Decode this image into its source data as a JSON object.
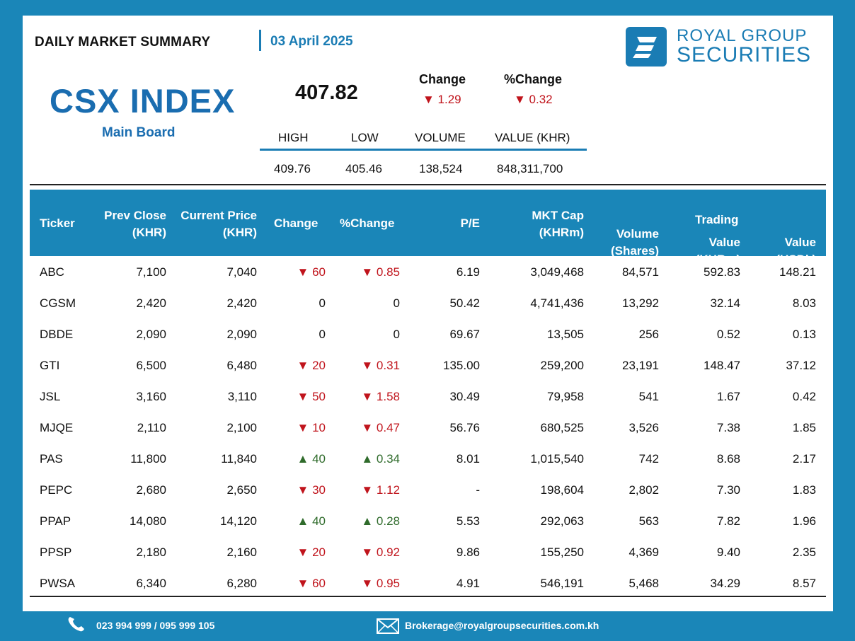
{
  "header": {
    "title": "DAILY MARKET SUMMARY",
    "date": "03 April 2025",
    "logo_line1": "ROYAL GROUP",
    "logo_line2": "SECURITIES"
  },
  "index": {
    "name": "CSX INDEX",
    "board": "Main Board",
    "value": "407.82",
    "change_label": "Change",
    "change_value": "▼ 1.29",
    "pct_change_label": "%Change",
    "pct_change_value": "▼ 0.32",
    "stats_headers": [
      "HIGH",
      "LOW",
      "VOLUME",
      "VALUE (KHR)"
    ],
    "stats_values": [
      "409.76",
      "405.46",
      "138,524",
      "848,311,700"
    ]
  },
  "table": {
    "headers": {
      "ticker": "Ticker",
      "prev_close_1": "Prev Close",
      "prev_close_2": "(KHR)",
      "current_price_1": "Current Price",
      "current_price_2": "(KHR)",
      "change": "Change",
      "pct_change": "%Change",
      "pe": "P/E",
      "mkt_cap_1": "MKT Cap",
      "mkt_cap_2": "(KHRm)",
      "volume_1": "Volume",
      "volume_2": "(Shares)",
      "trading": "Trading",
      "value_khrm_1": "Value",
      "value_khrm_2": "(KHRm)",
      "value_usdk_1": "Value",
      "value_usdk_2": "(USDk)"
    },
    "rows": [
      {
        "ticker": "ABC",
        "prev": "7,100",
        "curr": "7,040",
        "change": "▼ 60",
        "pct": "▼ 0.85",
        "dir": "down",
        "pe": "6.19",
        "mktcap": "3,049,468",
        "volume": "84,571",
        "value_khrm": "592.83",
        "value_usdk": "148.21"
      },
      {
        "ticker": "CGSM",
        "prev": "2,420",
        "curr": "2,420",
        "change": "0",
        "pct": "0",
        "dir": "neutral",
        "pe": "50.42",
        "mktcap": "4,741,436",
        "volume": "13,292",
        "value_khrm": "32.14",
        "value_usdk": "8.03"
      },
      {
        "ticker": "DBDE",
        "prev": "2,090",
        "curr": "2,090",
        "change": "0",
        "pct": "0",
        "dir": "neutral",
        "pe": "69.67",
        "mktcap": "13,505",
        "volume": "256",
        "value_khrm": "0.52",
        "value_usdk": "0.13"
      },
      {
        "ticker": "GTI",
        "prev": "6,500",
        "curr": "6,480",
        "change": "▼ 20",
        "pct": "▼ 0.31",
        "dir": "down",
        "pe": "135.00",
        "mktcap": "259,200",
        "volume": "23,191",
        "value_khrm": "148.47",
        "value_usdk": "37.12"
      },
      {
        "ticker": "JSL",
        "prev": "3,160",
        "curr": "3,110",
        "change": "▼ 50",
        "pct": "▼ 1.58",
        "dir": "down",
        "pe": "30.49",
        "mktcap": "79,958",
        "volume": "541",
        "value_khrm": "1.67",
        "value_usdk": "0.42"
      },
      {
        "ticker": "MJQE",
        "prev": "2,110",
        "curr": "2,100",
        "change": "▼ 10",
        "pct": "▼ 0.47",
        "dir": "down",
        "pe": "56.76",
        "mktcap": "680,525",
        "volume": "3,526",
        "value_khrm": "7.38",
        "value_usdk": "1.85"
      },
      {
        "ticker": "PAS",
        "prev": "11,800",
        "curr": "11,840",
        "change": "▲ 40",
        "pct": "▲ 0.34",
        "dir": "up",
        "pe": "8.01",
        "mktcap": "1,015,540",
        "volume": "742",
        "value_khrm": "8.68",
        "value_usdk": "2.17"
      },
      {
        "ticker": "PEPC",
        "prev": "2,680",
        "curr": "2,650",
        "change": "▼ 30",
        "pct": "▼ 1.12",
        "dir": "down",
        "pe": "-",
        "mktcap": "198,604",
        "volume": "2,802",
        "value_khrm": "7.30",
        "value_usdk": "1.83"
      },
      {
        "ticker": "PPAP",
        "prev": "14,080",
        "curr": "14,120",
        "change": "▲ 40",
        "pct": "▲ 0.28",
        "dir": "up",
        "pe": "5.53",
        "mktcap": "292,063",
        "volume": "563",
        "value_khrm": "7.82",
        "value_usdk": "1.96"
      },
      {
        "ticker": "PPSP",
        "prev": "2,180",
        "curr": "2,160",
        "change": "▼ 20",
        "pct": "▼ 0.92",
        "dir": "down",
        "pe": "9.86",
        "mktcap": "155,250",
        "volume": "4,369",
        "value_khrm": "9.40",
        "value_usdk": "2.35"
      },
      {
        "ticker": "PWSA",
        "prev": "6,340",
        "curr": "6,280",
        "change": "▼ 60",
        "pct": "▼ 0.95",
        "dir": "down",
        "pe": "4.91",
        "mktcap": "546,191",
        "volume": "5,468",
        "value_khrm": "34.29",
        "value_usdk": "8.57"
      }
    ]
  },
  "footer": {
    "phone": "023 994 999 / 095 999 105",
    "email": "Brokerage@royalgroupsecurities.com.kh",
    "phone_icon": "phone-icon",
    "email_icon": "mail-icon"
  },
  "colors": {
    "brand_blue": "#1a86b8",
    "down_red": "#c0141c",
    "up_green": "#2f6b2b"
  }
}
